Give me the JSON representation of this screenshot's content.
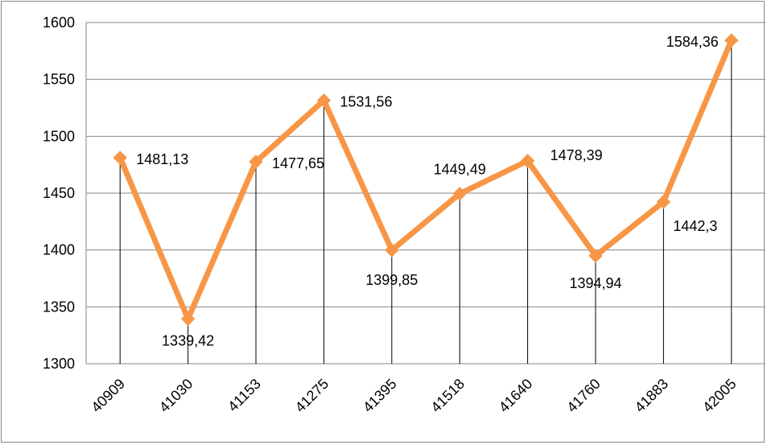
{
  "chart_data": {
    "type": "line",
    "title": "",
    "xlabel": "",
    "ylabel": "",
    "categories": [
      "40909",
      "41030",
      "41153",
      "41275",
      "41395",
      "41518",
      "41640",
      "41760",
      "41883",
      "42005"
    ],
    "series": [
      {
        "values": [
          1481.13,
          1339.42,
          1477.65,
          1531.56,
          1399.85,
          1449.49,
          1478.39,
          1394.94,
          1442.3,
          1584.36
        ],
        "labels": [
          "1481,13",
          "1339,42",
          "1477,65",
          "1531,56",
          "1399,85",
          "1449,49",
          "1478,39",
          "1394,94",
          "1442,3",
          "1584,36"
        ],
        "color": "#F79646"
      }
    ],
    "ylim": [
      1300,
      1600
    ],
    "yticks": [
      "1300",
      "1350",
      "1400",
      "1450",
      "1500",
      "1550",
      "1600"
    ],
    "grid": true,
    "drop_lines": true,
    "legend": "none",
    "colors": {
      "line": "#F79646",
      "grid": "#868686",
      "drop_line": "#000000"
    }
  }
}
